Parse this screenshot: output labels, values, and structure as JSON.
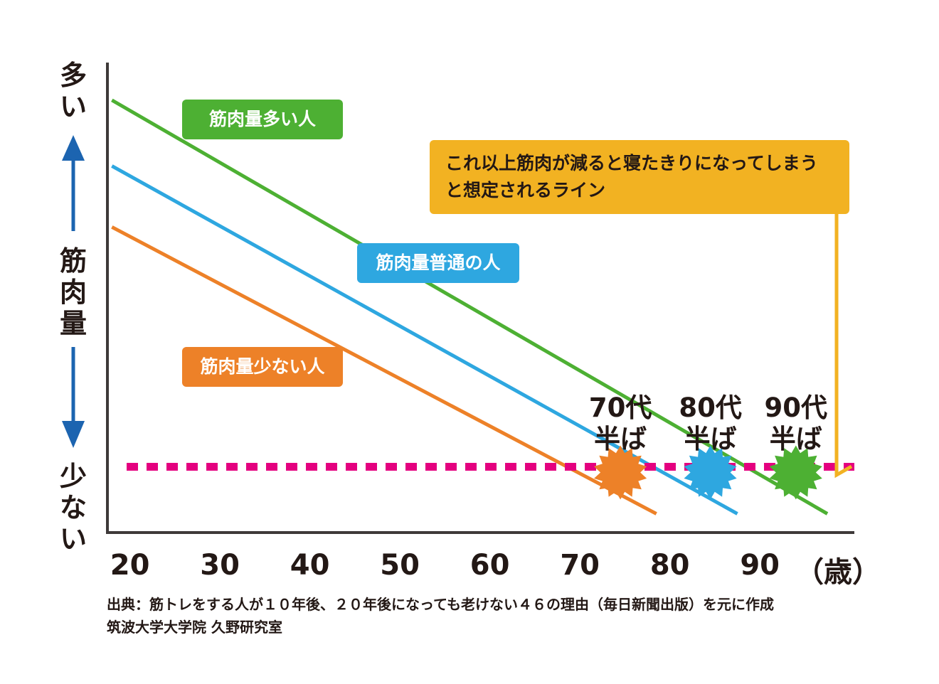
{
  "chart_data": {
    "type": "line",
    "ylabel": "筋肉量",
    "y_high_label": "多い",
    "y_low_label": "少ない",
    "x_unit": "（歳）",
    "x_ticks": [
      "20",
      "30",
      "40",
      "50",
      "60",
      "70",
      "80",
      "90"
    ],
    "xlim": [
      17.5,
      100.5
    ],
    "ylim": [
      0,
      100
    ],
    "series": [
      {
        "name": "筋肉量多い人",
        "color": "#4db033",
        "x": [
          18,
          97.5
        ],
        "y": [
          92,
          4
        ]
      },
      {
        "name": "筋肉量普通の人",
        "color": "#2ea7e0",
        "x": [
          18,
          87.5
        ],
        "y": [
          78,
          4
        ]
      },
      {
        "name": "筋肉量少ない人",
        "color": "#ed8128",
        "x": [
          18,
          78.5
        ],
        "y": [
          65,
          4
        ]
      }
    ],
    "threshold": {
      "y": 14,
      "color": "#e4007f",
      "label": "これ以上筋肉が減ると寝たきりになってしまうと想定されるライン"
    },
    "annotations": [
      {
        "line1": "70代",
        "line2": "半ば",
        "x": 74.5,
        "color": "#ed8128"
      },
      {
        "line1": "80代",
        "line2": "半ば",
        "x": 84.5,
        "color": "#2ea7e0"
      },
      {
        "line1": "90代",
        "line2": "半ば",
        "x": 94,
        "color": "#4db033"
      }
    ],
    "arrow_color": "#1c64b0",
    "note_color": "#f2b222",
    "axis_color": "#3e3a39"
  },
  "source": {
    "line1": "出典：筋トレをする人が１０年後、２０年後になっても老けない４６の理由（毎日新聞出版）を元に作成",
    "line2": "筑波大学大学院 久野研究室"
  }
}
